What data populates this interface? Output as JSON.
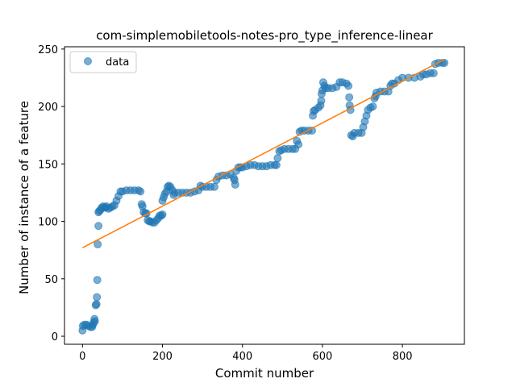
{
  "chart_data": {
    "type": "scatter",
    "title": "com-simplemobiletools-notes-pro_type_inference-linear",
    "xlabel": "Commit number",
    "ylabel": "Number of instance of a feature",
    "xlim": [
      -45,
      955
    ],
    "ylim": [
      -7,
      252
    ],
    "xticks": [
      0,
      200,
      400,
      600,
      800
    ],
    "yticks": [
      0,
      50,
      100,
      150,
      200,
      250
    ],
    "grid": false,
    "legend_position": "top-left",
    "series": [
      {
        "name": "data",
        "type": "scatter",
        "color": "#1f77b4",
        "points": [
          [
            0,
            5
          ],
          [
            1,
            9
          ],
          [
            5,
            10
          ],
          [
            10,
            10
          ],
          [
            15,
            9
          ],
          [
            20,
            8
          ],
          [
            24,
            8
          ],
          [
            26,
            10
          ],
          [
            28,
            12
          ],
          [
            30,
            15
          ],
          [
            31,
            13
          ],
          [
            33,
            27
          ],
          [
            35,
            28
          ],
          [
            36,
            34
          ],
          [
            37,
            49
          ],
          [
            38,
            80
          ],
          [
            40,
            96
          ],
          [
            40,
            108
          ],
          [
            42,
            109
          ],
          [
            45,
            110
          ],
          [
            48,
            112
          ],
          [
            52,
            113
          ],
          [
            55,
            112
          ],
          [
            58,
            112
          ],
          [
            60,
            113
          ],
          [
            65,
            111
          ],
          [
            70,
            112
          ],
          [
            75,
            113
          ],
          [
            80,
            114
          ],
          [
            85,
            118
          ],
          [
            90,
            122
          ],
          [
            95,
            126
          ],
          [
            100,
            126
          ],
          [
            110,
            127
          ],
          [
            120,
            127
          ],
          [
            130,
            127
          ],
          [
            140,
            127
          ],
          [
            145,
            126
          ],
          [
            148,
            115
          ],
          [
            150,
            113
          ],
          [
            153,
            108
          ],
          [
            157,
            107
          ],
          [
            160,
            107
          ],
          [
            163,
            101
          ],
          [
            167,
            100
          ],
          [
            170,
            100
          ],
          [
            175,
            99
          ],
          [
            180,
            99
          ],
          [
            185,
            101
          ],
          [
            190,
            103
          ],
          [
            193,
            105
          ],
          [
            197,
            105
          ],
          [
            200,
            106
          ],
          [
            200,
            118
          ],
          [
            203,
            121
          ],
          [
            206,
            124
          ],
          [
            210,
            126
          ],
          [
            213,
            130
          ],
          [
            216,
            131
          ],
          [
            220,
            130
          ],
          [
            225,
            127
          ],
          [
            228,
            123
          ],
          [
            230,
            125
          ],
          [
            240,
            125
          ],
          [
            250,
            125
          ],
          [
            260,
            125
          ],
          [
            270,
            125
          ],
          [
            280,
            126
          ],
          [
            290,
            127
          ],
          [
            295,
            131
          ],
          [
            300,
            130
          ],
          [
            310,
            130
          ],
          [
            320,
            130
          ],
          [
            330,
            130
          ],
          [
            335,
            136
          ],
          [
            340,
            139
          ],
          [
            350,
            140
          ],
          [
            360,
            140
          ],
          [
            370,
            141
          ],
          [
            378,
            138
          ],
          [
            380,
            136
          ],
          [
            382,
            132
          ],
          [
            385,
            144
          ],
          [
            390,
            147
          ],
          [
            395,
            147
          ],
          [
            400,
            147
          ],
          [
            410,
            148
          ],
          [
            420,
            149
          ],
          [
            430,
            149
          ],
          [
            440,
            148
          ],
          [
            450,
            148
          ],
          [
            460,
            148
          ],
          [
            470,
            149
          ],
          [
            480,
            149
          ],
          [
            485,
            149
          ],
          [
            488,
            155
          ],
          [
            492,
            161
          ],
          [
            497,
            162
          ],
          [
            505,
            163
          ],
          [
            515,
            163
          ],
          [
            525,
            163
          ],
          [
            532,
            163
          ],
          [
            536,
            170
          ],
          [
            540,
            167
          ],
          [
            543,
            178
          ],
          [
            548,
            179
          ],
          [
            555,
            179
          ],
          [
            565,
            179
          ],
          [
            574,
            179
          ],
          [
            576,
            192
          ],
          [
            578,
            196
          ],
          [
            582,
            197
          ],
          [
            590,
            199
          ],
          [
            595,
            201
          ],
          [
            597,
            205
          ],
          [
            598,
            211
          ],
          [
            600,
            214
          ],
          [
            602,
            221
          ],
          [
            605,
            218
          ],
          [
            608,
            216
          ],
          [
            615,
            216
          ],
          [
            625,
            216
          ],
          [
            635,
            217
          ],
          [
            643,
            221
          ],
          [
            650,
            221
          ],
          [
            660,
            220
          ],
          [
            665,
            218
          ],
          [
            667,
            208
          ],
          [
            668,
            201
          ],
          [
            670,
            197
          ],
          [
            672,
            175
          ],
          [
            676,
            174
          ],
          [
            680,
            177
          ],
          [
            690,
            177
          ],
          [
            698,
            177
          ],
          [
            702,
            182
          ],
          [
            706,
            187
          ],
          [
            710,
            192
          ],
          [
            714,
            197
          ],
          [
            720,
            199
          ],
          [
            726,
            200
          ],
          [
            730,
            207
          ],
          [
            733,
            209
          ],
          [
            735,
            212
          ],
          [
            745,
            213
          ],
          [
            755,
            213
          ],
          [
            765,
            213
          ],
          [
            770,
            218
          ],
          [
            774,
            220
          ],
          [
            780,
            220
          ],
          [
            790,
            223
          ],
          [
            800,
            225
          ],
          [
            815,
            225
          ],
          [
            830,
            225
          ],
          [
            845,
            226
          ],
          [
            852,
            228
          ],
          [
            860,
            228
          ],
          [
            870,
            229
          ],
          [
            878,
            229
          ],
          [
            882,
            237
          ],
          [
            890,
            238
          ],
          [
            900,
            238
          ],
          [
            905,
            238
          ]
        ]
      },
      {
        "name": "",
        "type": "line",
        "color": "#ff7f0e",
        "points": [
          [
            0,
            77
          ],
          [
            905,
            241
          ]
        ]
      }
    ]
  }
}
